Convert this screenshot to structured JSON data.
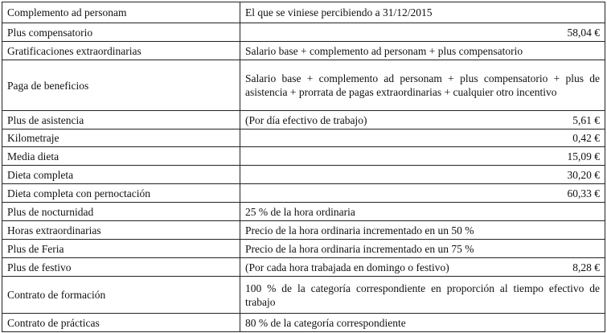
{
  "rows": [
    {
      "concept": "Complemento ad personam",
      "description": "El que se viniese percibiendo a 31/12/2015",
      "amount": ""
    },
    {
      "concept": "Plus compensatorio",
      "description": "",
      "amount": "58,04 €"
    },
    {
      "concept": "Gratificaciones extraordinarias",
      "description": "Salario base + complemento ad personam + plus compensatorio",
      "amount": ""
    },
    {
      "concept": "Paga de beneficios",
      "description": "Salario base + complemento ad personam + plus compensatorio + plus de asistencia + prorrata de pagas extraordinarias + cualquier otro in­centivo",
      "amount": ""
    },
    {
      "concept": "Plus de asistencia",
      "description": "(Por día efectivo de trabajo)",
      "amount": "5,61 €"
    },
    {
      "concept": "Kilometraje",
      "description": "",
      "amount": "0,42 €"
    },
    {
      "concept": "Media dieta",
      "description": "",
      "amount": "15,09 €"
    },
    {
      "concept": "Dieta completa",
      "description": "",
      "amount": "30,20 €"
    },
    {
      "concept": "Dieta completa con pernoctación",
      "description": "",
      "amount": "60,33 €"
    },
    {
      "concept": "Plus de nocturnidad",
      "description": "25 % de la hora ordinaria",
      "amount": ""
    },
    {
      "concept": "Horas extraordinarias",
      "description": "Precio de la hora ordinaria incrementado en un 50 %",
      "amount": ""
    },
    {
      "concept": "Plus de Feria",
      "description": "Precio de la hora ordinaria incrementado en un 75 %",
      "amount": ""
    },
    {
      "concept": "Plus de festivo",
      "description": "(Por cada hora trabajada en domingo o festivo)",
      "amount": "8,28 €"
    },
    {
      "concept": "Contrato de formación",
      "description": "100 % de la categoría correspondiente en proporción al tiempo efectivo de trabajo",
      "amount": ""
    },
    {
      "concept": "Contrato de prácticas",
      "description": "80 % de la categoría correspondiente",
      "amount": ""
    }
  ]
}
